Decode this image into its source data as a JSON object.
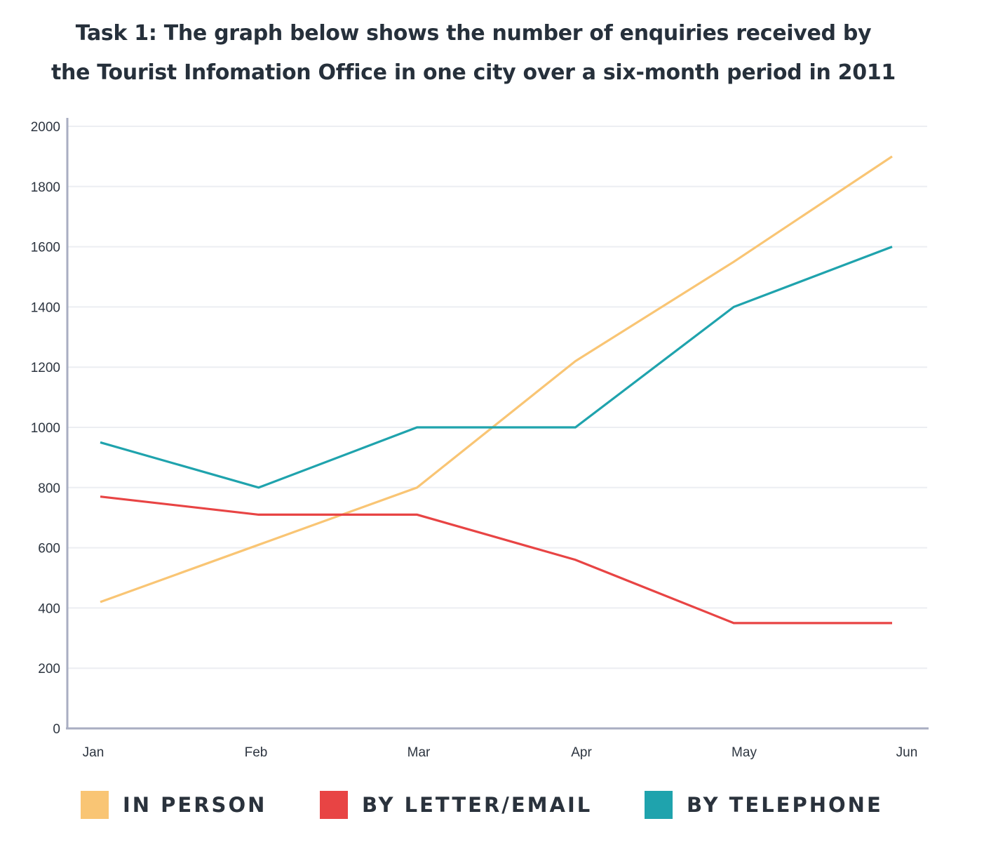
{
  "title": {
    "line1": "Task 1: The graph below shows the number of enquiries received by",
    "line2": "the Tourist Infomation Office in one city over a six-month period in 2011"
  },
  "colors": {
    "in_person": "#f9c574",
    "by_letter_email": "#e84444",
    "by_telephone": "#1fa3ad",
    "grid": "#eceef2",
    "axis": "#a9aec2"
  },
  "chart_data": {
    "type": "line",
    "title": "Task 1: The graph below shows the number of enquiries received by the Tourist Infomation Office in one city over a six-month period in 2011",
    "xlabel": "",
    "ylabel": "",
    "categories": [
      "Jan",
      "Feb",
      "Mar",
      "Apr",
      "May",
      "Jun"
    ],
    "ylim": [
      0,
      2000
    ],
    "yticks": [
      0,
      200,
      400,
      600,
      800,
      1000,
      1200,
      1400,
      1600,
      1800,
      2000
    ],
    "grid": true,
    "legend_position": "bottom",
    "series": [
      {
        "name": "IN PERSON",
        "color": "#f9c574",
        "values": [
          420,
          610,
          800,
          1220,
          1550,
          1900
        ]
      },
      {
        "name": "BY LETTER/EMAIL",
        "color": "#e84444",
        "values": [
          770,
          710,
          710,
          560,
          350,
          350
        ]
      },
      {
        "name": "BY TELEPHONE",
        "color": "#1fa3ad",
        "values": [
          950,
          800,
          1000,
          1000,
          1400,
          1600
        ]
      }
    ]
  },
  "legend": {
    "items": [
      {
        "label": "IN PERSON",
        "color": "#f9c574"
      },
      {
        "label": "BY LETTER/EMAIL",
        "color": "#e84444"
      },
      {
        "label": "BY TELEPHONE",
        "color": "#1fa3ad"
      }
    ]
  }
}
